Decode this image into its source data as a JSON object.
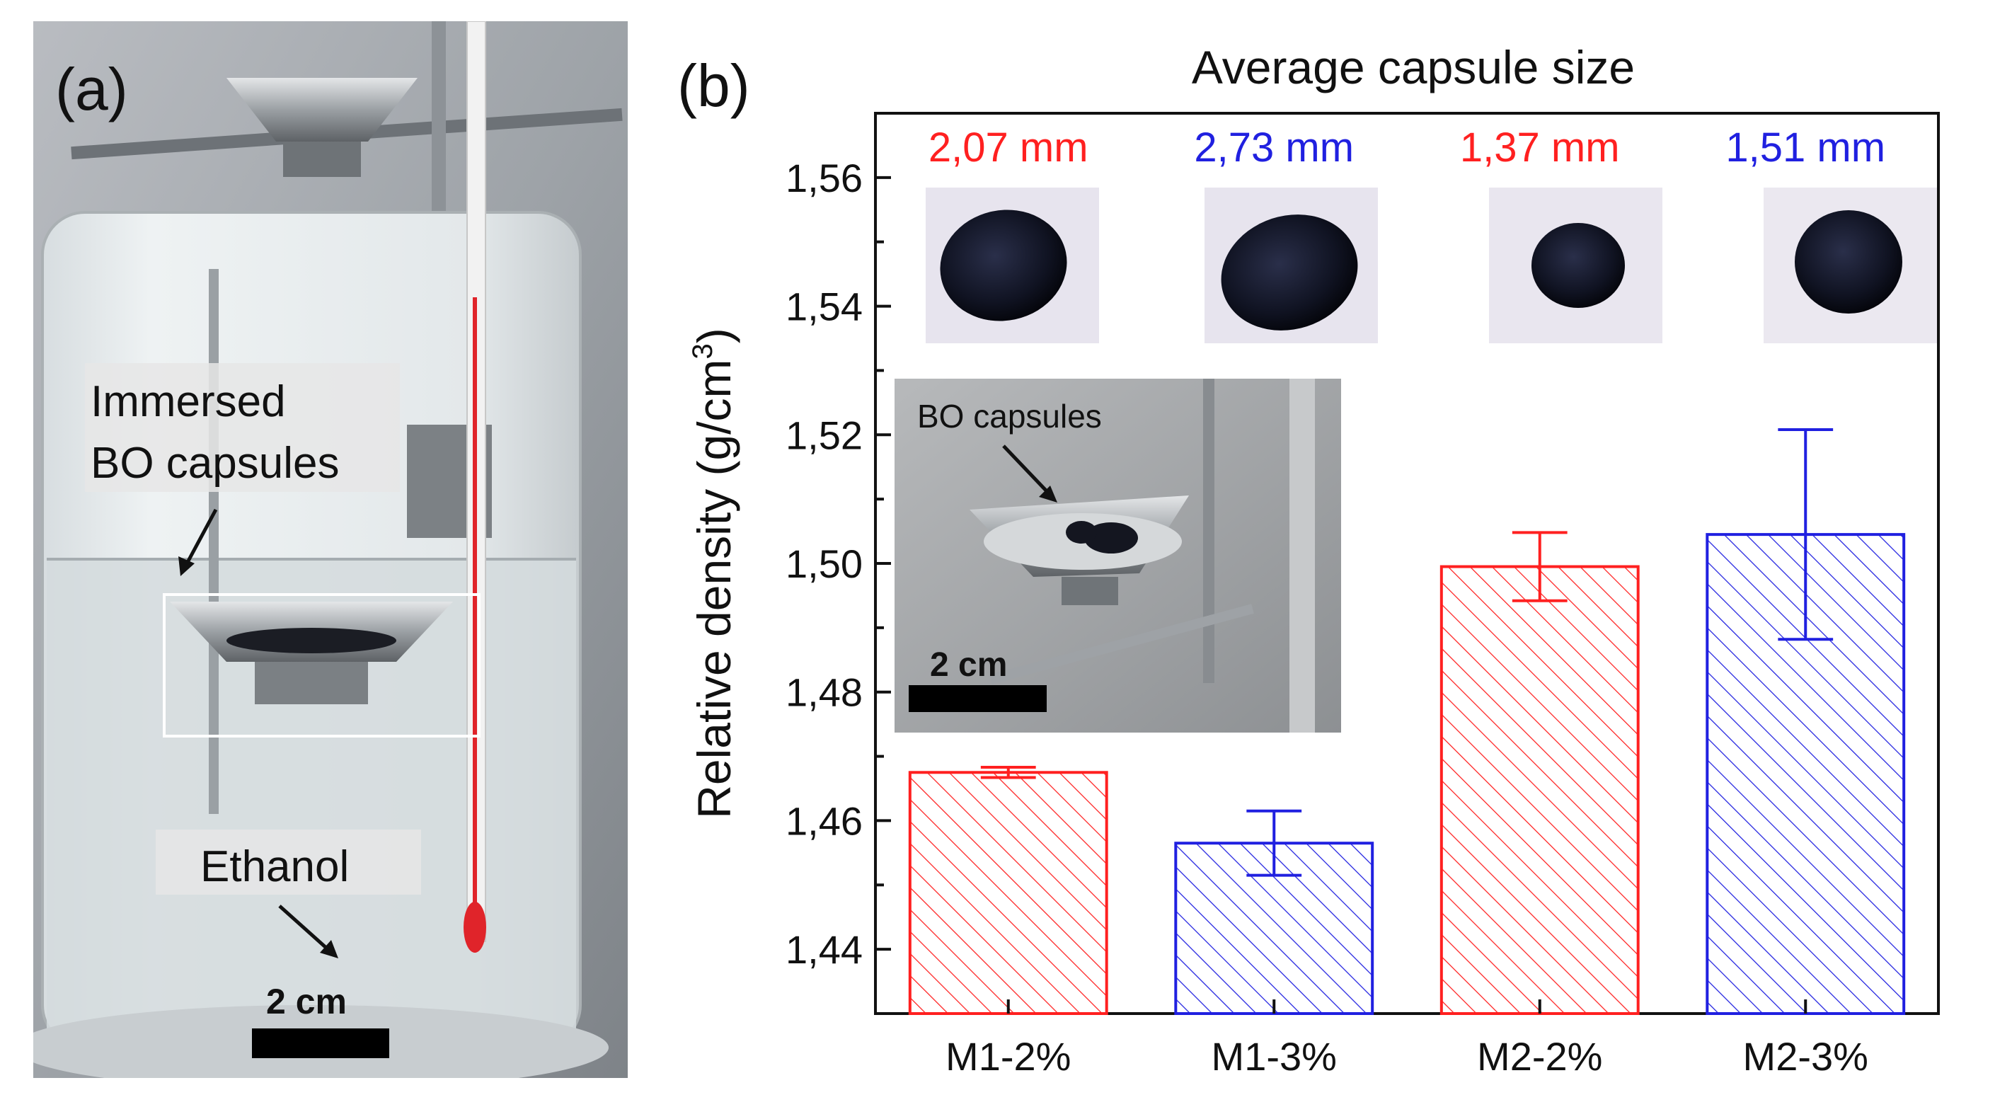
{
  "panel_a": {
    "label": "(a)",
    "annotation_capsules_line1": "Immersed",
    "annotation_capsules_line2": "BO capsules",
    "annotation_liquid": "Ethanol",
    "scale_bar_label": "2 cm"
  },
  "panel_b": {
    "label": "(b)",
    "inset": {
      "annotation": "BO capsules",
      "scale_bar_label": "2 cm"
    }
  },
  "chart_data": {
    "type": "bar",
    "title": "Average capsule size",
    "xlabel": "",
    "ylabel": "Relative density (g/cm",
    "ylabel_sup": "3",
    "ylabel_close": ")",
    "ylim": [
      1.43,
      1.57
    ],
    "yticks": [
      1.44,
      1.46,
      1.48,
      1.5,
      1.52,
      1.54,
      1.56
    ],
    "ytick_labels": [
      "1,44",
      "1,46",
      "1,48",
      "1,50",
      "1,52",
      "1,54",
      "1,56"
    ],
    "categories": [
      "M1-2%",
      "M1-3%",
      "M2-2%",
      "M2-3%"
    ],
    "values": [
      1.4675,
      1.4565,
      1.4995,
      1.5045
    ],
    "errors": [
      0.0008,
      0.005,
      0.0053,
      0.0163
    ],
    "bar_colors": [
      "#ff2020",
      "#2020e0",
      "#ff2020",
      "#2020e0"
    ],
    "size_labels": [
      "2,07 mm",
      "2,73 mm",
      "1,37 mm",
      "1,51 mm"
    ],
    "fill_pattern": "diagonal-hatch"
  }
}
